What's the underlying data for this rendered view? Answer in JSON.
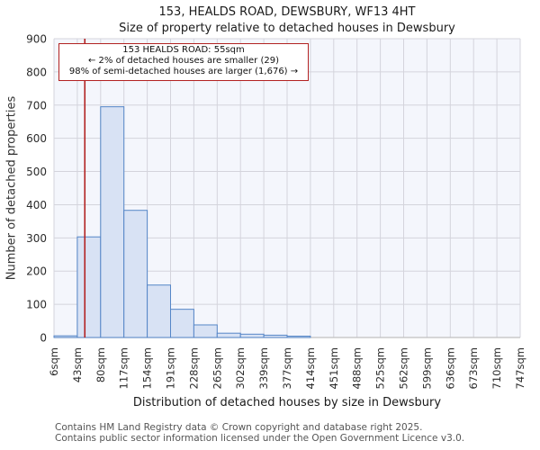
{
  "chart_data": {
    "type": "bar",
    "title": "153, HEALDS ROAD, DEWSBURY, WF13 4HT",
    "subtitle": "Size of property relative to detached houses in Dewsbury",
    "xlabel": "Distribution of detached houses by size in Dewsbury",
    "ylabel": "Number of detached properties",
    "categories": [
      "6sqm",
      "43sqm",
      "80sqm",
      "117sqm",
      "154sqm",
      "191sqm",
      "228sqm",
      "265sqm",
      "302sqm",
      "339sqm",
      "377sqm",
      "414sqm",
      "451sqm",
      "488sqm",
      "525sqm",
      "562sqm",
      "599sqm",
      "636sqm",
      "673sqm",
      "710sqm",
      "747sqm"
    ],
    "bin_edges": [
      6,
      43,
      80,
      117,
      154,
      191,
      228,
      265,
      302,
      339,
      377,
      414,
      451,
      488,
      525,
      562,
      599,
      636,
      673,
      710,
      747
    ],
    "values": [
      5,
      303,
      695,
      383,
      158,
      85,
      38,
      13,
      10,
      7,
      4,
      0,
      0,
      0,
      0,
      0,
      0,
      0,
      0,
      0
    ],
    "ylim": [
      0,
      900
    ],
    "ytick_step": 100,
    "grid": true,
    "legend": "none",
    "marker_line": {
      "x_value": 55,
      "color": "#b22222"
    },
    "annotation": {
      "lines": [
        "153 HEALDS ROAD: 55sqm",
        "← 2% of detached houses are smaller (29)",
        "98% of semi-detached houses are larger (1,676) →"
      ],
      "border_color": "#b22222"
    },
    "colors": {
      "bar_fill": "#d8e2f4",
      "bar_stroke": "#5586c7",
      "plot_bg": "#f4f6fc",
      "grid": "#d4d4dc",
      "axis": "#c0c0c0",
      "tick_text": "#2b2b2b"
    }
  },
  "footer": {
    "line1": "Contains HM Land Registry data © Crown copyright and database right 2025.",
    "line2": "Contains public sector information licensed under the Open Government Licence v3.0."
  }
}
